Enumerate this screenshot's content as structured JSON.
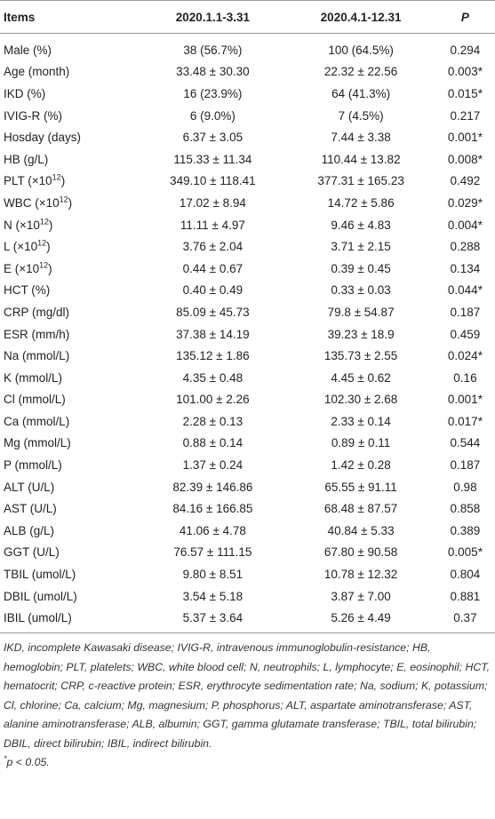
{
  "table": {
    "header": [
      "Items",
      "2020.1.1-3.31",
      "2020.4.1-12.31",
      "P"
    ],
    "rows": [
      [
        "Male (%)",
        "38 (56.7%)",
        "100 (64.5%)",
        "0.294"
      ],
      [
        "Age (month)",
        "33.48 ± 30.30",
        "22.32 ± 22.56",
        "0.003*"
      ],
      [
        "IKD (%)",
        "16 (23.9%)",
        "64 (41.3%)",
        "0.015*"
      ],
      [
        "IVIG-R (%)",
        "6 (9.0%)",
        "7 (4.5%)",
        "0.217"
      ],
      [
        "Hosday (days)",
        "6.37 ± 3.05",
        "7.44 ± 3.38",
        "0.001*"
      ],
      [
        "HB (g/L)",
        "115.33 ± 11.34",
        "110.44 ± 13.82",
        "0.008*"
      ],
      [
        {
          "text": "PLT (×10",
          "sup": "12",
          "after": ")"
        },
        "349.10 ± 118.41",
        "377.31 ± 165.23",
        "0.492"
      ],
      [
        {
          "text": "WBC (×10",
          "sup": "12",
          "after": ")"
        },
        "17.02 ± 8.94",
        "14.72 ± 5.86",
        "0.029*"
      ],
      [
        {
          "text": "N (×10",
          "sup": "12",
          "after": ")"
        },
        "11.11 ± 4.97",
        "9.46 ± 4.83",
        "0.004*"
      ],
      [
        {
          "text": "L (×10",
          "sup": "12",
          "after": ")"
        },
        "3.76 ± 2.04",
        "3.71 ± 2.15",
        "0.288"
      ],
      [
        {
          "text": "E (×10",
          "sup": "12",
          "after": ")"
        },
        "0.44 ± 0.67",
        "0.39 ± 0.45",
        "0.134"
      ],
      [
        "HCT (%)",
        "0.40 ± 0.49",
        "0.33 ± 0.03",
        "0.044*"
      ],
      [
        "CRP (mg/dl)",
        "85.09 ± 45.73",
        "79.8 ± 54.87",
        "0.187"
      ],
      [
        "ESR (mm/h)",
        "37.38 ± 14.19",
        "39.23 ± 18.9",
        "0.459"
      ],
      [
        "Na (mmol/L)",
        "135.12 ± 1.86",
        "135.73 ± 2.55",
        "0.024*"
      ],
      [
        "K (mmol/L)",
        "4.35 ± 0.48",
        "4.45 ± 0.62",
        "0.16"
      ],
      [
        "Cl (mmol/L)",
        "101.00 ± 2.26",
        "102.30 ± 2.68",
        "0.001*"
      ],
      [
        "Ca (mmol/L)",
        "2.28 ± 0.13",
        "2.33 ± 0.14",
        "0.017*"
      ],
      [
        "Mg (mmol/L)",
        "0.88 ± 0.14",
        "0.89 ± 0.11",
        "0.544"
      ],
      [
        "P (mmol/L)",
        "1.37 ± 0.24",
        "1.42 ± 0.28",
        "0.187"
      ],
      [
        "ALT (U/L)",
        "82.39 ± 146.86",
        "65.55 ± 91.11",
        "0.98"
      ],
      [
        "AST (U/L)",
        "84.16 ± 166.85",
        "68.48 ± 87.57",
        "0.858"
      ],
      [
        "ALB (g/L)",
        "41.06 ± 4.78",
        "40.84 ± 5.33",
        "0.389"
      ],
      [
        "GGT (U/L)",
        "76.57 ± 111.15",
        "67.80 ± 90.58",
        "0.005*"
      ],
      [
        "TBIL (umol/L)",
        "9.80 ± 8.51",
        "10.78 ± 12.32",
        "0.804"
      ],
      [
        "DBIL (umol/L)",
        "3.54 ± 5.18",
        "3.87 ± 7.00",
        "0.881"
      ],
      [
        "IBIL (umol/L)",
        "5.37 ± 3.64",
        "5.26 ± 4.49",
        "0.37"
      ]
    ]
  },
  "footnote": {
    "abbreviations": "IKD, incomplete Kawasaki disease; IVIG-R, intravenous immunoglobulin-resistance; HB, hemoglobin; PLT, platelets; WBC, white blood cell; N, neutrophils; L, lymphocyte; E, eosinophil; HCT, hematocrit; CRP, c-reactive protein; ESR, erythrocyte sedimentation rate; Na, sodium; K, potassium; Cl, chlorine; Ca, calcium; Mg, magnesium; P, phosphorus; ALT, aspartate aminotransferase; AST, alanine aminotransferase; ALB, albumin; GGT, gamma glutamate transferase; TBIL, total bilirubin; DBIL, direct bilirubin; IBIL, indirect bilirubin.",
    "significance_mark": "*",
    "significance": "p < 0.05."
  }
}
